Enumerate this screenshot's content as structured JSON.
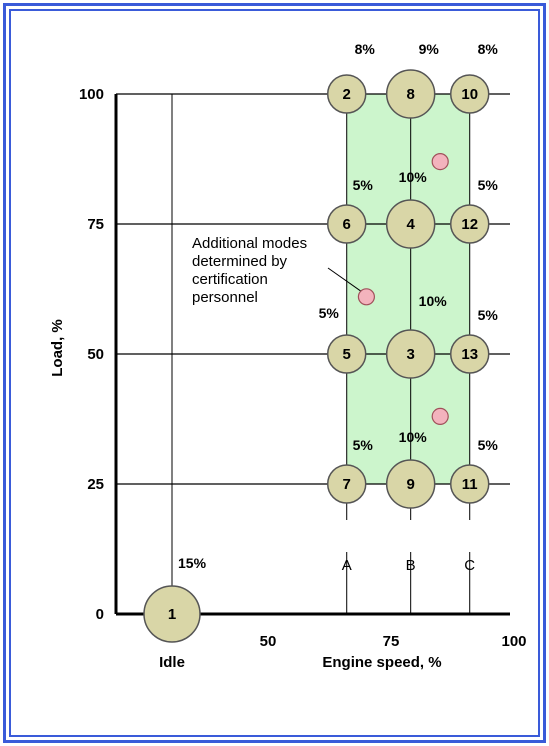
{
  "colors": {
    "frame": "#3a5bd9",
    "region": "#ccf5cc",
    "circle_fill": "#d9d6a7",
    "circle_stroke": "#555555",
    "extra_fill": "#f3b3bd",
    "extra_stroke": "#a0505a"
  },
  "chart_data": {
    "type": "scatter",
    "title": "",
    "xlabel": "Engine speed, %",
    "ylabel": "Load, %",
    "xlim": [
      0,
      100
    ],
    "ylim": [
      0,
      100
    ],
    "x_ticks": [
      "50",
      "75",
      "100"
    ],
    "y_ticks": [
      "100",
      "75",
      "50",
      "25",
      "0"
    ],
    "idle_label": "Idle",
    "speed_points": [
      {
        "label": "A",
        "x": 66
      },
      {
        "label": "B",
        "x": 79
      },
      {
        "label": "C",
        "x": 91
      }
    ],
    "modes": [
      {
        "mode": "1",
        "speed": "Idle",
        "load": 0,
        "weight": "15%"
      },
      {
        "mode": "2",
        "speed": "A",
        "load": 100,
        "weight": "8%"
      },
      {
        "mode": "8",
        "speed": "B",
        "load": 100,
        "weight": "9%"
      },
      {
        "mode": "10",
        "speed": "C",
        "load": 100,
        "weight": "8%"
      },
      {
        "mode": "6",
        "speed": "A",
        "load": 75,
        "weight": "5%"
      },
      {
        "mode": "4",
        "speed": "B",
        "load": 75,
        "weight": "10%"
      },
      {
        "mode": "12",
        "speed": "C",
        "load": 75,
        "weight": "5%"
      },
      {
        "mode": "5",
        "speed": "A",
        "load": 50,
        "weight": "5%"
      },
      {
        "mode": "3",
        "speed": "B",
        "load": 50,
        "weight": "10%"
      },
      {
        "mode": "13",
        "speed": "C",
        "load": 50,
        "weight": "5%"
      },
      {
        "mode": "7",
        "speed": "A",
        "load": 25,
        "weight": "5%"
      },
      {
        "mode": "9",
        "speed": "B",
        "load": 25,
        "weight": "10%"
      },
      {
        "mode": "11",
        "speed": "C",
        "load": 25,
        "weight": "5%"
      }
    ],
    "additional_modes": [
      {
        "x": 70,
        "y": 61
      },
      {
        "x": 85,
        "y": 87
      },
      {
        "x": 85,
        "y": 38
      }
    ],
    "annotation": {
      "lines": [
        "Additional modes",
        "determined by",
        "certification",
        "personnel"
      ],
      "points_to": 0
    }
  }
}
